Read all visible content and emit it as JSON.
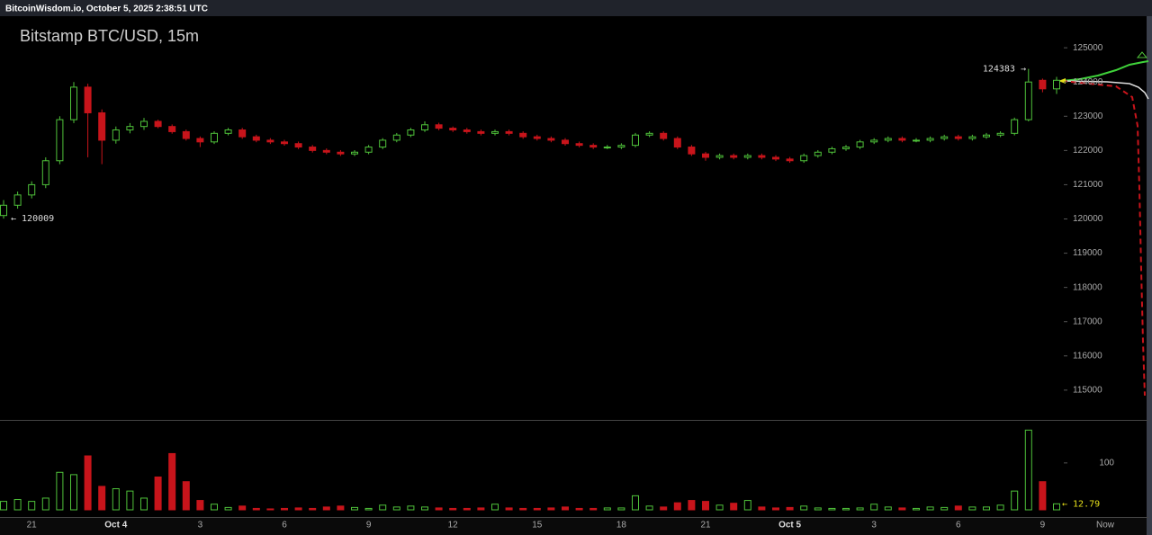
{
  "header": "BitcoinWisdom.io, October 5, 2025 2:38:51 UTC",
  "chart_data": {
    "type": "candlestick",
    "title": "Bitstamp BTC/USD, 15m",
    "categories": [
      null,
      null,
      "21",
      null,
      null,
      null,
      null,
      null,
      "Oct 4",
      null,
      null,
      null,
      null,
      null,
      "3",
      null,
      null,
      null,
      null,
      null,
      "6",
      null,
      null,
      null,
      null,
      null,
      "9",
      null,
      null,
      null,
      null,
      null,
      "12",
      null,
      null,
      null,
      null,
      null,
      "15",
      null,
      null,
      null,
      null,
      null,
      "18",
      null,
      null,
      null,
      null,
      null,
      "21",
      null,
      null,
      null,
      null,
      null,
      "Oct 5",
      null,
      null,
      null,
      null,
      null,
      "3",
      null,
      null,
      null,
      null,
      null,
      "6",
      null,
      null,
      null,
      null,
      null,
      "9",
      null
    ],
    "open": [
      120100,
      120400,
      120700,
      121000,
      121700,
      122900,
      123850,
      123100,
      122300,
      122600,
      122700,
      122850,
      122700,
      122550,
      122350,
      122250,
      122500,
      122600,
      122400,
      122300,
      122250,
      122200,
      122100,
      122000,
      121950,
      121900,
      121950,
      122100,
      122300,
      122450,
      122600,
      122750,
      122650,
      122600,
      122550,
      122500,
      122550,
      122500,
      122400,
      122350,
      122300,
      122200,
      122150,
      122100,
      122100,
      122150,
      122450,
      122500,
      122350,
      122100,
      121900,
      121800,
      121850,
      121800,
      121850,
      121800,
      121750,
      121700,
      121850,
      121950,
      122050,
      122100,
      122250,
      122300,
      122350,
      122300,
      122300,
      122350,
      122400,
      122350,
      122400,
      122450,
      122500,
      122900,
      124050,
      123800
    ],
    "high": [
      120550,
      120800,
      121100,
      121800,
      123000,
      124000,
      123950,
      123200,
      122700,
      122800,
      122950,
      122900,
      122760,
      122610,
      122410,
      122560,
      122660,
      122660,
      122460,
      122360,
      122310,
      122260,
      122160,
      122060,
      122010,
      122010,
      122160,
      122360,
      122510,
      122660,
      122850,
      122810,
      122700,
      122660,
      122610,
      122610,
      122610,
      122560,
      122460,
      122410,
      122360,
      122260,
      122210,
      122160,
      122210,
      122510,
      122560,
      122560,
      122410,
      122160,
      121960,
      121910,
      121910,
      121910,
      121910,
      121860,
      121810,
      121910,
      122010,
      122110,
      122160,
      122310,
      122360,
      122410,
      122410,
      122360,
      122410,
      122460,
      122460,
      122460,
      122510,
      122560,
      122960,
      124383,
      124100,
      124150
    ],
    "low": [
      120009,
      120300,
      120600,
      120900,
      121600,
      122800,
      121800,
      121600,
      122200,
      122500,
      122600,
      122650,
      122490,
      122290,
      122100,
      122190,
      122440,
      122340,
      122240,
      122190,
      122140,
      122040,
      121940,
      121890,
      121840,
      121840,
      121890,
      122040,
      122240,
      122390,
      122540,
      122590,
      122540,
      122490,
      122440,
      122440,
      122440,
      122340,
      122290,
      122240,
      122140,
      122090,
      122040,
      122040,
      122040,
      122090,
      122390,
      122290,
      122040,
      121840,
      121700,
      121740,
      121740,
      121740,
      121740,
      121690,
      121640,
      121640,
      121790,
      121890,
      121990,
      122040,
      122190,
      122240,
      122240,
      122240,
      122240,
      122290,
      122290,
      122290,
      122340,
      122390,
      122440,
      122850,
      123700,
      123650
    ],
    "close": [
      120400,
      120700,
      121000,
      121700,
      122900,
      123850,
      123100,
      122300,
      122600,
      122700,
      122850,
      122700,
      122550,
      122350,
      122250,
      122500,
      122600,
      122400,
      122300,
      122250,
      122200,
      122100,
      122000,
      121950,
      121900,
      121950,
      122100,
      122300,
      122450,
      122600,
      122750,
      122650,
      122600,
      122550,
      122500,
      122550,
      122500,
      122400,
      122350,
      122300,
      122200,
      122150,
      122100,
      122100,
      122150,
      122450,
      122500,
      122350,
      122100,
      121900,
      121800,
      121850,
      121800,
      121850,
      121800,
      121750,
      121700,
      121850,
      121950,
      122050,
      122100,
      122250,
      122300,
      122350,
      122300,
      122300,
      122350,
      122400,
      122350,
      122400,
      122450,
      122500,
      122900,
      124000,
      123800,
      124050
    ],
    "volume": [
      18,
      22,
      18,
      25,
      80,
      75,
      115,
      50,
      45,
      40,
      25,
      70,
      120,
      60,
      20,
      12,
      5,
      8,
      3,
      2,
      3,
      4,
      3,
      6,
      8,
      5,
      3,
      10,
      6,
      8,
      6,
      4,
      3,
      3,
      4,
      12,
      4,
      3,
      3,
      4,
      6,
      3,
      3,
      4,
      4,
      30,
      8,
      6,
      15,
      20,
      18,
      10,
      14,
      20,
      6,
      4,
      5,
      8,
      4,
      3,
      3,
      4,
      12,
      6,
      4,
      3,
      6,
      5,
      8,
      6,
      6,
      10,
      40,
      170,
      60,
      12.79
    ],
    "ylim": [
      114130,
      125870
    ],
    "yticks": [
      115000,
      116000,
      117000,
      118000,
      119000,
      120000,
      121000,
      122000,
      123000,
      124000,
      125000
    ],
    "volume_ylim": [
      0,
      186
    ],
    "volume_yticks": [
      100
    ],
    "up_color": "#4fc23a",
    "down_color": "#c8141b",
    "low_label": "← 120009",
    "high_label": "124383 →",
    "volume_label": "← 12.79",
    "now_label": "Now"
  }
}
